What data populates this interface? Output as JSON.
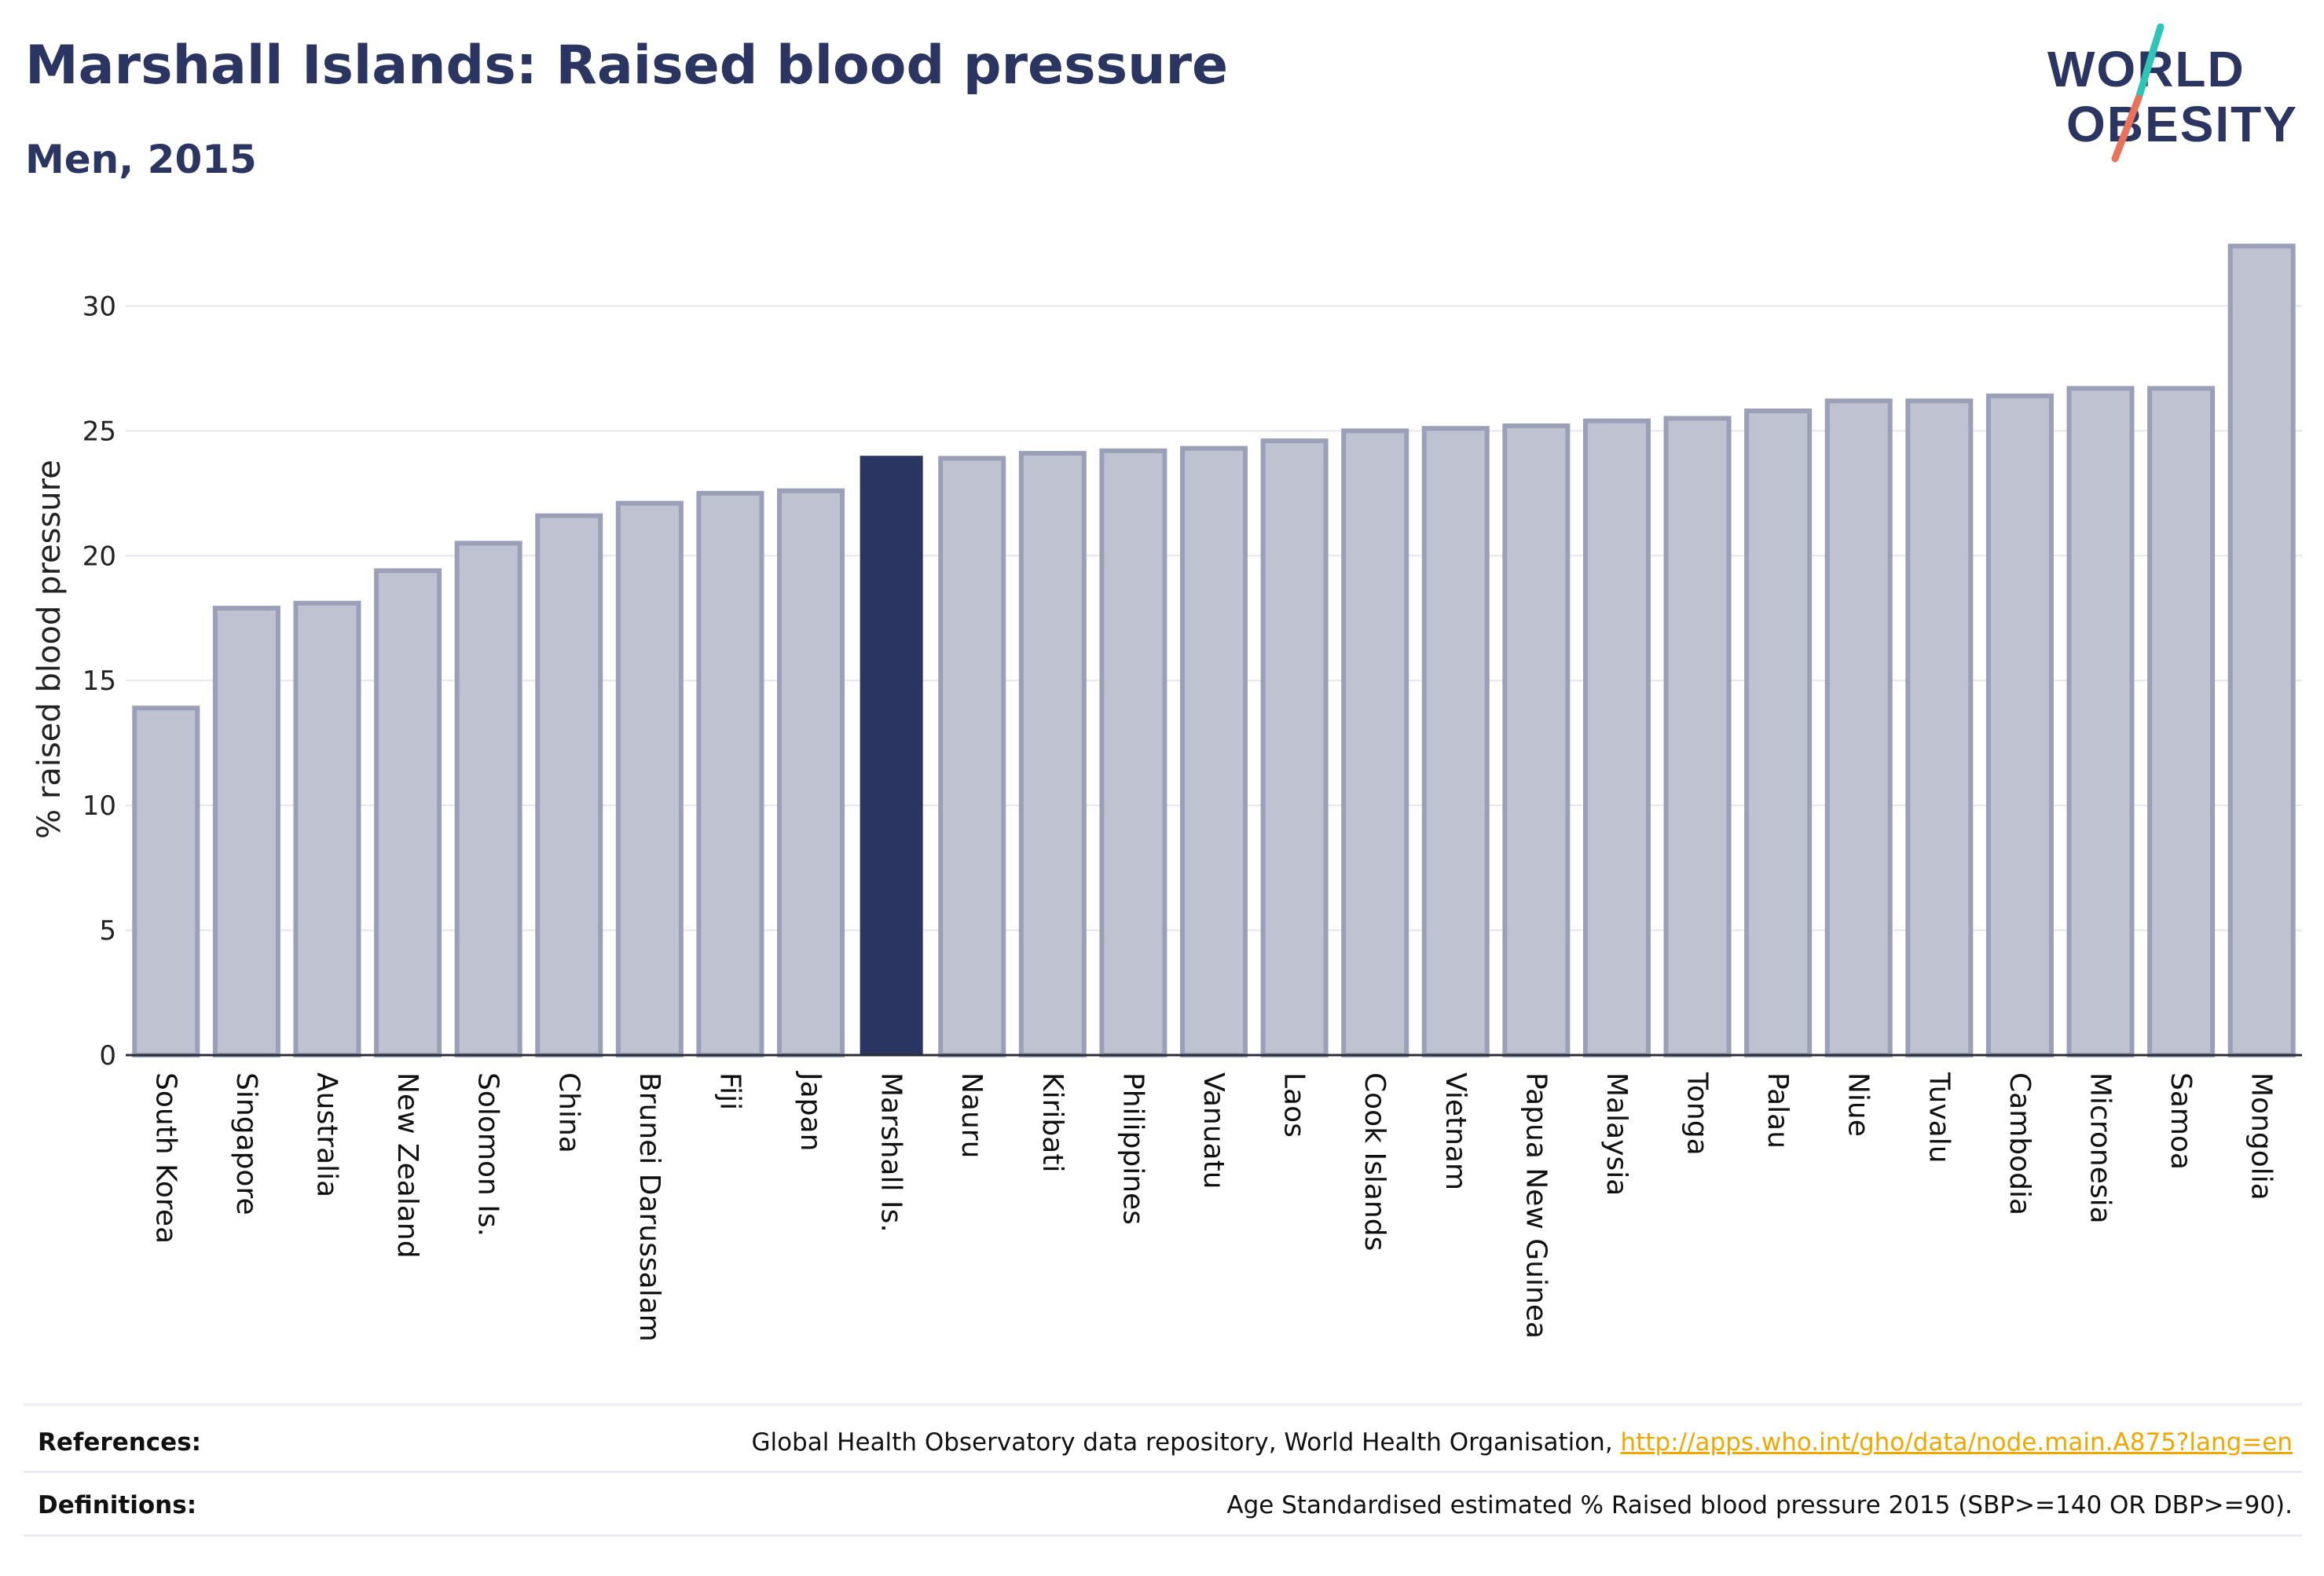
{
  "title": "Marshall Islands: Raised blood pressure",
  "subtitle": "Men, 2015",
  "logo": {
    "line1": "WORLD",
    "line2": "OBESITY",
    "colors": {
      "text": "#2a3562",
      "slash_top": "#2ec4b6",
      "slash_bottom": "#e8735a"
    }
  },
  "colors": {
    "bar": "#bfc2d1",
    "bar_stroke": "#9aa0b8",
    "highlight": "#2b3561",
    "grid": "#e6e7ee",
    "axis": "#2b2f3a"
  },
  "chart_data": {
    "type": "bar",
    "ylabel": "% raised blood pressure",
    "xlabel": "",
    "ylim": [
      0,
      32.5
    ],
    "yticks": [
      0,
      5,
      10,
      15,
      20,
      25,
      30
    ],
    "grid": true,
    "highlight": "Marshall Is.",
    "categories": [
      "South Korea",
      "Singapore",
      "Australia",
      "New Zealand",
      "Solomon Is.",
      "China",
      "Brunei Darussalam",
      "Fiji",
      "Japan",
      "Marshall Is.",
      "Nauru",
      "Kiribati",
      "Philippines",
      "Vanuatu",
      "Laos",
      "Cook Islands",
      "Vietnam",
      "Papua New Guinea",
      "Malaysia",
      "Tonga",
      "Palau",
      "Niue",
      "Tuvalu",
      "Cambodia",
      "Micronesia",
      "Samoa",
      "Mongolia"
    ],
    "values": [
      13.9,
      17.9,
      18.1,
      19.4,
      20.5,
      21.6,
      22.1,
      22.5,
      22.6,
      24.0,
      23.9,
      24.1,
      24.2,
      24.3,
      24.6,
      25.0,
      25.1,
      25.2,
      25.4,
      25.5,
      25.8,
      26.2,
      26.2,
      26.4,
      26.7,
      26.7,
      32.4
    ]
  },
  "footer": {
    "references_label": "References:",
    "references_text": "Global Health Observatory data repository, World Health Organisation, ",
    "references_link": "http://apps.who.int/gho/data/node.main.A875?lang=en",
    "definitions_label": "Definitions:",
    "definitions_text": "Age Standardised estimated % Raised blood pressure 2015 (SBP>=140 OR DBP>=90)."
  }
}
